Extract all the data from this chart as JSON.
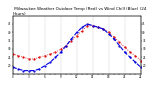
{
  "title": " Milwaukee Weather Outdoor Temp (Red) vs Wind Chill (Blue) (24 Hours)",
  "title_fontsize": 3.0,
  "xlim": [
    0,
    24
  ],
  "ylim": [
    15,
    50
  ],
  "yticks_left": [
    20,
    25,
    30,
    35,
    40,
    45
  ],
  "yticks_right": [
    20,
    25,
    30,
    35,
    40,
    45
  ],
  "bg_color": "#ffffff",
  "grid_color": "#aaaaaa",
  "red_x": [
    0,
    1,
    2,
    3,
    4,
    5,
    6,
    7,
    8,
    9,
    10,
    11,
    12,
    13,
    14,
    15,
    16,
    17,
    18,
    19,
    20,
    21,
    22,
    23,
    24
  ],
  "red_y": [
    27,
    26,
    25,
    24,
    24,
    25,
    26,
    27,
    28,
    30,
    32,
    35,
    38,
    41,
    44,
    44,
    43,
    42,
    40,
    37,
    34,
    31,
    28,
    26,
    23
  ],
  "blue_x": [
    0,
    1,
    2,
    3,
    4,
    5,
    6,
    7,
    8,
    9,
    10,
    11,
    12,
    13,
    14,
    15,
    16,
    17,
    18,
    19,
    20,
    21,
    22,
    23,
    24
  ],
  "blue_y": [
    19,
    18,
    17,
    17,
    17,
    18,
    20,
    22,
    25,
    28,
    32,
    36,
    40,
    43,
    45,
    44,
    43,
    42,
    39,
    36,
    32,
    28,
    25,
    22,
    19
  ],
  "red_color": "#dd0000",
  "blue_color": "#0000dd",
  "marker_size": 1.2,
  "red_linestyle": ":",
  "blue_linestyle": "--"
}
